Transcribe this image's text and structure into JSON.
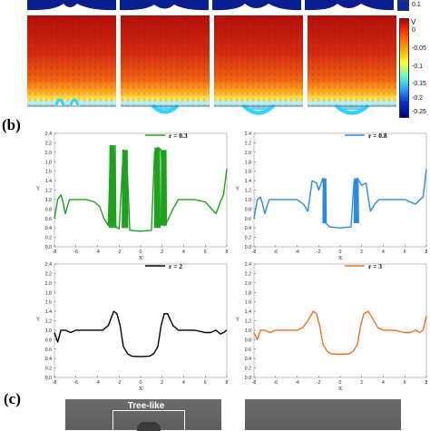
{
  "figure": {
    "panel_b_label": "(b)",
    "panel_c_label": "(c)",
    "colorbar_top": {
      "ticks": [
        "0.1"
      ]
    },
    "colorbar_main": {
      "label": "V",
      "ticks": [
        "0",
        "-0.05",
        "-0.1",
        "-0.15",
        "-0.2",
        "-0.25"
      ],
      "colors": [
        "#b30000",
        "#ff3300",
        "#ff9900",
        "#ffff33",
        "#66ffcc",
        "#33aaff",
        "#0033cc",
        "#000080"
      ]
    },
    "photos": [
      {
        "label": "Tree-like"
      },
      {
        "label": ""
      }
    ]
  },
  "chart_data": [
    {
      "type": "line",
      "legend": "r = 0.3",
      "color": "#1fa01f",
      "xlabel": "X",
      "ylabel": "Y",
      "xlim": [
        -8,
        8
      ],
      "ylim": [
        0,
        2.4
      ],
      "xticks": [
        "-8",
        "-6",
        "-4",
        "-2",
        "0",
        "2",
        "4",
        "6",
        "8"
      ],
      "yticks": [
        "0.0",
        "0.2",
        "0.4",
        "0.6",
        "0.8",
        "1.0",
        "1.2",
        "1.4",
        "1.6",
        "1.8",
        "2.0",
        "2.2",
        "2.4"
      ],
      "x": [
        -8,
        -7.7,
        -7.4,
        -7.2,
        -7.0,
        -6.6,
        -6.0,
        -5.0,
        -4.3,
        -3.8,
        -3.4,
        -3.0,
        -2.8,
        -2.6,
        -2.4,
        -2.0,
        -1.6,
        -1.3,
        -1.0,
        0,
        1.0,
        1.3,
        1.6,
        1.9,
        2.2,
        2.5,
        3.0,
        3.5,
        4.0,
        5.0,
        6.0,
        7.0,
        7.4,
        7.7,
        8
      ],
      "y": [
        0.6,
        1.0,
        1.1,
        0.95,
        0.7,
        1.0,
        1.0,
        1.0,
        0.95,
        0.85,
        0.6,
        0.45,
        2.1,
        2.1,
        0.45,
        0.38,
        2.05,
        1.95,
        0.35,
        0.33,
        0.35,
        2.0,
        2.1,
        2.05,
        0.45,
        0.55,
        0.8,
        1.0,
        1.0,
        1.0,
        0.95,
        0.7,
        0.95,
        1.1,
        1.65
      ],
      "spikes": [
        {
          "x0": -2.9,
          "x1": -2.3,
          "ymin": 0.4,
          "ymax": 2.15
        },
        {
          "x0": -1.7,
          "x1": -1.2,
          "ymin": 0.4,
          "ymax": 2.05
        },
        {
          "x0": 1.3,
          "x1": 1.8,
          "ymin": 0.4,
          "ymax": 2.1
        },
        {
          "x0": 1.9,
          "x1": 2.4,
          "ymin": 0.45,
          "ymax": 2.05
        }
      ]
    },
    {
      "type": "line",
      "legend": "r = 0.8",
      "color": "#2b8be0",
      "xlabel": "X",
      "ylabel": "Y",
      "xlim": [
        -8,
        8
      ],
      "ylim": [
        0,
        2.4
      ],
      "xticks": [
        "-8",
        "-6",
        "-4",
        "-2",
        "0",
        "2",
        "4",
        "6",
        "8"
      ],
      "yticks": [
        "0.0",
        "0.2",
        "0.4",
        "0.6",
        "0.8",
        "1.0",
        "1.2",
        "1.4",
        "1.6",
        "1.8",
        "2.0",
        "2.2",
        "2.4"
      ],
      "x": [
        -8,
        -7.7,
        -7.4,
        -7.2,
        -7.0,
        -6.6,
        -6.0,
        -5.0,
        -4.0,
        -3.4,
        -3.0,
        -2.6,
        -2.2,
        -2.0,
        -1.6,
        -1.3,
        -1.0,
        0,
        1.0,
        1.3,
        1.6,
        2.0,
        2.4,
        2.8,
        3.2,
        3.6,
        4.0,
        5.0,
        6.0,
        7.0,
        7.4,
        7.7,
        8
      ],
      "y": [
        0.6,
        1.0,
        1.05,
        0.9,
        0.7,
        1.0,
        1.0,
        1.0,
        1.0,
        0.9,
        0.75,
        1.4,
        1.35,
        1.2,
        1.45,
        0.5,
        0.42,
        0.4,
        0.42,
        1.4,
        1.45,
        1.3,
        1.35,
        0.75,
        0.9,
        1.0,
        1.0,
        1.0,
        1.0,
        0.9,
        1.0,
        1.05,
        1.65
      ],
      "spikes": [
        {
          "x0": -1.6,
          "x1": -1.3,
          "ymin": 0.5,
          "ymax": 1.45
        },
        {
          "x0": 1.3,
          "x1": 1.7,
          "ymin": 0.5,
          "ymax": 1.45
        }
      ]
    },
    {
      "type": "line",
      "legend": "r = 2",
      "color": "#000000",
      "xlabel": "X",
      "ylabel": "Y",
      "xlim": [
        -8,
        8
      ],
      "ylim": [
        0,
        2.4
      ],
      "xticks": [
        "-8",
        "-6",
        "-4",
        "-2",
        "0",
        "2",
        "4",
        "6",
        "8"
      ],
      "yticks": [
        "0.0",
        "0.2",
        "0.4",
        "0.6",
        "0.8",
        "1.0",
        "1.2",
        "1.4",
        "1.6",
        "1.8",
        "2.0",
        "2.2",
        "2.4"
      ],
      "x": [
        -8,
        -7.7,
        -7.4,
        -7.0,
        -6.5,
        -6.0,
        -5.0,
        -4.0,
        -3.5,
        -3.0,
        -2.5,
        -2.2,
        -1.9,
        -1.6,
        -1.2,
        -0.8,
        0,
        0.8,
        1.2,
        1.6,
        1.9,
        2.2,
        2.5,
        3.0,
        3.5,
        4.0,
        5.0,
        6.0,
        6.5,
        7.0,
        7.4,
        7.7,
        8
      ],
      "y": [
        0.95,
        0.75,
        1.0,
        1.0,
        0.95,
        1.0,
        1.0,
        1.0,
        1.0,
        1.1,
        1.4,
        1.35,
        1.1,
        0.65,
        0.5,
        0.45,
        0.44,
        0.45,
        0.5,
        0.65,
        1.1,
        1.35,
        1.35,
        1.1,
        1.0,
        1.0,
        1.0,
        0.95,
        0.95,
        1.0,
        0.92,
        0.95,
        1.0
      ]
    },
    {
      "type": "line",
      "legend": "r = 3",
      "color": "#f07020",
      "xlabel": "X",
      "ylabel": "Y",
      "xlim": [
        -8,
        8
      ],
      "ylim": [
        0,
        2.4
      ],
      "xticks": [
        "-8",
        "-6",
        "-4",
        "-2",
        "0",
        "2",
        "4",
        "6",
        "8"
      ],
      "yticks": [
        "0.0",
        "0.2",
        "0.4",
        "0.6",
        "0.8",
        "1.0",
        "1.2",
        "1.4",
        "1.6",
        "1.8",
        "2.0",
        "2.2",
        "2.4"
      ],
      "x": [
        -8,
        -7.7,
        -7.4,
        -7.0,
        -6.5,
        -6.0,
        -5.0,
        -4.0,
        -3.5,
        -3.0,
        -2.5,
        -2.2,
        -1.9,
        -1.6,
        -1.2,
        -0.8,
        0,
        0.8,
        1.2,
        1.6,
        1.9,
        2.2,
        2.6,
        3.0,
        3.5,
        4.0,
        5.0,
        6.0,
        6.5,
        7.0,
        7.4,
        7.7,
        8
      ],
      "y": [
        0.95,
        0.8,
        1.0,
        1.0,
        0.95,
        1.0,
        1.0,
        1.0,
        1.05,
        1.2,
        1.4,
        1.35,
        1.1,
        0.7,
        0.55,
        0.5,
        0.49,
        0.5,
        0.55,
        0.7,
        1.1,
        1.35,
        1.4,
        1.25,
        1.05,
        1.0,
        1.0,
        0.95,
        0.95,
        1.0,
        0.95,
        1.0,
        1.3
      ]
    }
  ]
}
